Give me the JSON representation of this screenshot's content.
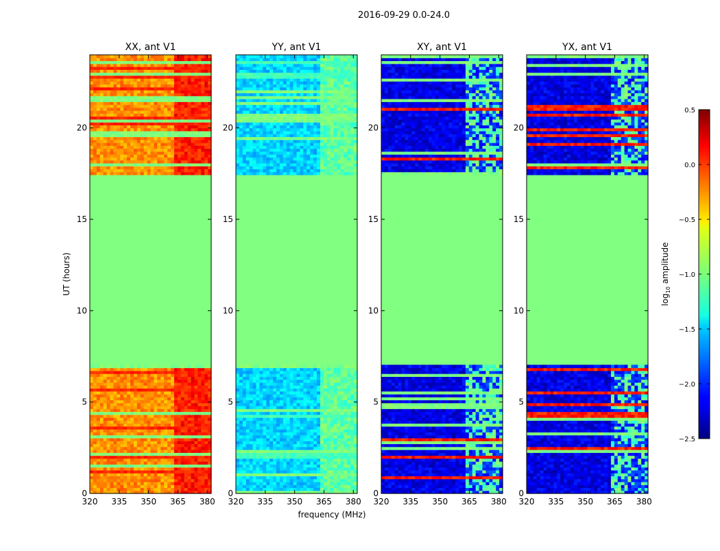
{
  "chart_data": {
    "type": "heatmap",
    "suptitle": "2016-09-29 0.0-24.0",
    "xlabel": "frequency (MHz)",
    "ylabel": "UT (hours)",
    "xlim": [
      320,
      382
    ],
    "ylim": [
      0,
      24
    ],
    "xticks": [
      320,
      335,
      350,
      365,
      380
    ],
    "xtick_labels": [
      "320",
      "335",
      "350",
      "365",
      "380"
    ],
    "yticks": [
      0,
      5,
      10,
      15,
      20
    ],
    "ytick_labels": [
      "0",
      "5",
      "10",
      "15",
      "20"
    ],
    "panels": [
      {
        "title": "XX, ant V1",
        "dominant_log10_amplitude": -0.3
      },
      {
        "title": "YY, ant V1",
        "dominant_log10_amplitude": -1.5
      },
      {
        "title": "XY, ant V1",
        "dominant_log10_amplitude": -2.2
      },
      {
        "title": "YX, ant V1",
        "dominant_log10_amplitude": -2.2
      }
    ],
    "gap_hours": [
      7.0,
      17.5
    ],
    "gap_log10_amplitude": -1.0,
    "colorbar": {
      "label": "log10 amplitude",
      "label_base": "log",
      "label_sub": "10",
      "label_rest": " amplitude",
      "range": [
        -2.5,
        0.5
      ],
      "ticks": [
        0.5,
        0.0,
        -0.5,
        -1.0,
        -1.5,
        -2.0,
        -2.5
      ],
      "tick_labels": [
        "0.5",
        "0.0",
        "−0.5",
        "−1.0",
        "−1.5",
        "−2.0",
        "−2.5"
      ],
      "colormap": "jet"
    }
  }
}
